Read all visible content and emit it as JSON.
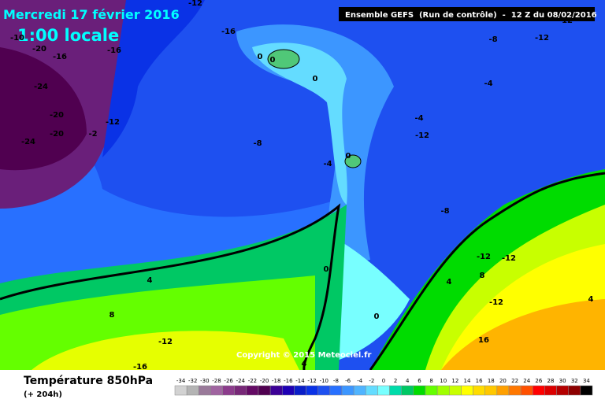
{
  "header": {
    "date": "Mercredi 17 février 2016",
    "time": "1:00 locale",
    "run": "Ensemble GEFS  (Run de contrôle)  -  12 Z du 08/02/2016"
  },
  "footer": {
    "variable": "Température 850hPa",
    "lead": "(+ 204h)",
    "copyright": "Copyright © 2015 Meteociel.fr"
  },
  "contour_labels": [
    "-12",
    "-16",
    "-10",
    "-20",
    "-16",
    "-16",
    "0",
    "0",
    "0",
    "-8",
    "-12",
    "-12",
    "-4",
    "-24",
    "-20",
    "-12",
    "-4",
    "-12",
    "-20",
    "-2",
    "-24",
    "-8",
    "0",
    "-4",
    "-8",
    "-12",
    "-12",
    "4",
    "0",
    "4",
    "8",
    "-12",
    "4",
    "8",
    "0",
    "-12",
    "16",
    "-16",
    "4"
  ],
  "legend": [
    {
      "label": "-34",
      "color": "#d2d2d2"
    },
    {
      "label": "-32",
      "color": "#b4b4b4"
    },
    {
      "label": "-30",
      "color": "#9a7a9a"
    },
    {
      "label": "-28",
      "color": "#a064a0"
    },
    {
      "label": "-26",
      "color": "#8c3c8c"
    },
    {
      "label": "-24",
      "color": "#782878"
    },
    {
      "label": "-22",
      "color": "#640a64"
    },
    {
      "label": "-20",
      "color": "#500050"
    },
    {
      "label": "-18",
      "color": "#3c0096"
    },
    {
      "label": "-16",
      "color": "#1e00b4"
    },
    {
      "label": "-14",
      "color": "#0a1ec8"
    },
    {
      "label": "-12",
      "color": "#0a32e6"
    },
    {
      "label": "-10",
      "color": "#1e50f0"
    },
    {
      "label": "-8",
      "color": "#2870ff"
    },
    {
      "label": "-6",
      "color": "#3c96ff"
    },
    {
      "label": "-4",
      "color": "#50b4ff"
    },
    {
      "label": "-2",
      "color": "#64dcff"
    },
    {
      "label": "0",
      "color": "#78ffff"
    },
    {
      "label": "2",
      "color": "#00dcaa"
    },
    {
      "label": "4",
      "color": "#00c864"
    },
    {
      "label": "6",
      "color": "#00dc00"
    },
    {
      "label": "8",
      "color": "#64ff00"
    },
    {
      "label": "10",
      "color": "#a0ff00"
    },
    {
      "label": "12",
      "color": "#c8ff00"
    },
    {
      "label": "14",
      "color": "#ffff00"
    },
    {
      "label": "16",
      "color": "#ffdc00"
    },
    {
      "label": "18",
      "color": "#ffc800"
    },
    {
      "label": "20",
      "color": "#ffa000"
    },
    {
      "label": "22",
      "color": "#ff7800"
    },
    {
      "label": "24",
      "color": "#ff5000"
    },
    {
      "label": "26",
      "color": "#ff0000"
    },
    {
      "label": "28",
      "color": "#dc0000"
    },
    {
      "label": "30",
      "color": "#b40000"
    },
    {
      "label": "32",
      "color": "#8c0000"
    },
    {
      "label": "34",
      "color": "#000000"
    }
  ]
}
